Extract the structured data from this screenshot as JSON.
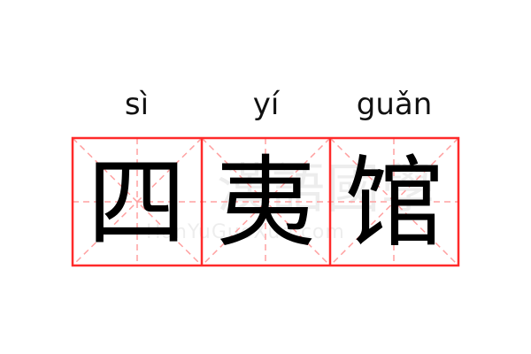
{
  "entries": [
    {
      "pinyin": "sì",
      "char": "四"
    },
    {
      "pinyin": "yí",
      "char": "夷"
    },
    {
      "pinyin": "guǎn",
      "char": "馆"
    }
  ],
  "watermark": {
    "chinese": "漢語國學",
    "latin": "HanYuGuoXue.com"
  },
  "colors": {
    "grid": "#ff2a2a",
    "guide": "#ffa0a0",
    "text": "#000000"
  }
}
